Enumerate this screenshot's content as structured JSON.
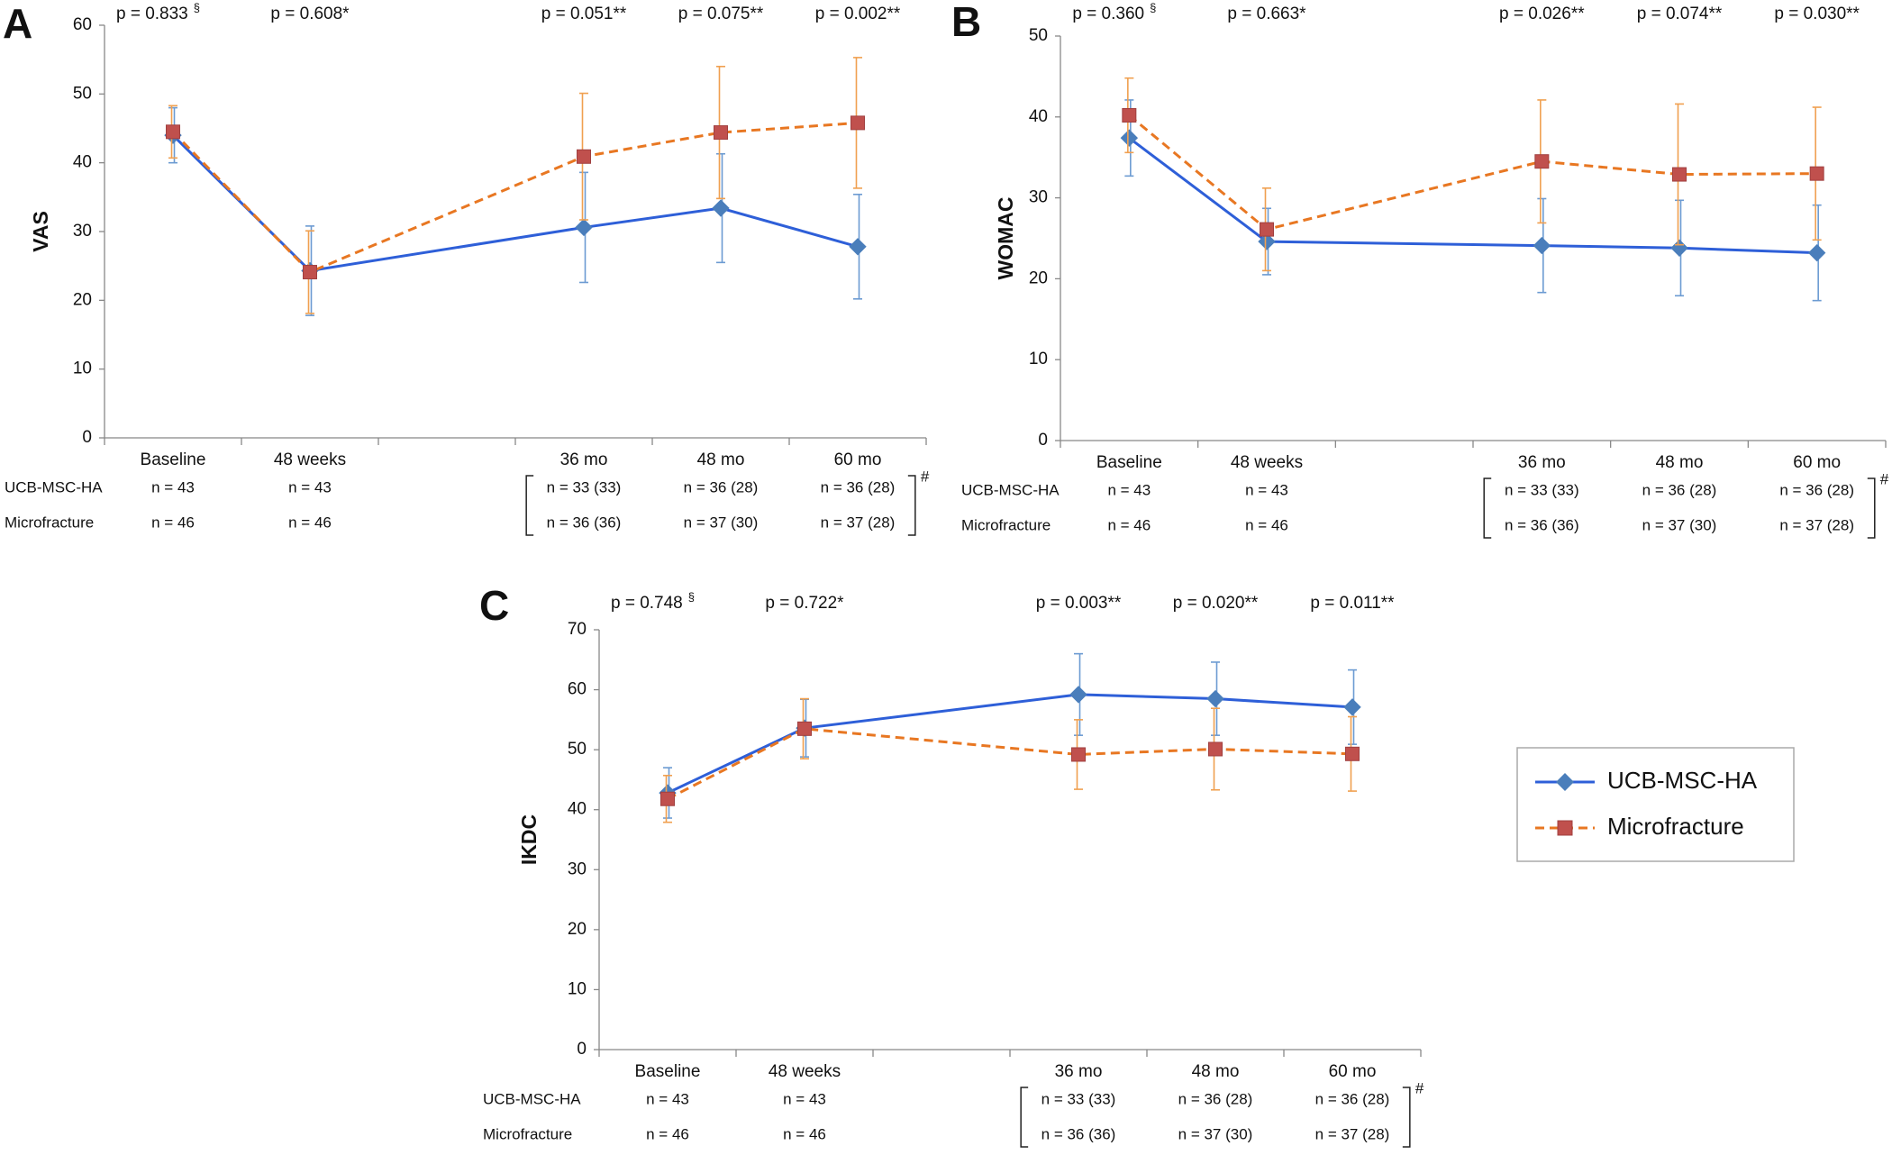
{
  "chart_data": [
    {
      "type": "line",
      "panel": "A",
      "ylabel": "VAS",
      "x": [
        0,
        1,
        3,
        4,
        5
      ],
      "xlim": [
        -0.5,
        5.5
      ],
      "xticks": [
        {
          "value": 0,
          "label": "Baseline"
        },
        {
          "value": 1,
          "label": "48 weeks"
        },
        {
          "value": 3,
          "label": "36 mo"
        },
        {
          "value": 4,
          "label": "48 mo"
        },
        {
          "value": 5,
          "label": "60 mo"
        }
      ],
      "ylim": [
        0,
        60
      ],
      "yticks": [
        0,
        10,
        20,
        30,
        40,
        50,
        60
      ],
      "series": [
        {
          "name": "UCB-MSC-HA",
          "color": "#2e5fd8",
          "marker_color": "#4a7ebb",
          "error_color": "#6c9bd2",
          "marker": "diamond",
          "dash": false,
          "values": [
            44,
            24.3,
            30.6,
            33.4,
            27.8
          ],
          "errors": [
            4,
            6.5,
            8,
            7.9,
            7.6
          ]
        },
        {
          "name": "Microfracture",
          "color": "#e87722",
          "marker_color": "#c0504d",
          "error_color": "#f0a050",
          "marker": "square",
          "dash": true,
          "values": [
            44.5,
            24.1,
            40.9,
            44.4,
            45.8
          ],
          "errors": [
            3.8,
            6,
            9.2,
            9.6,
            9.5
          ]
        }
      ],
      "p_values": [
        {
          "text": "p = 0.833",
          "sup": "§"
        },
        {
          "text": "p = 0.608*"
        },
        {
          "text": "p = 0.051**"
        },
        {
          "text": "p = 0.075**"
        },
        {
          "text": "p = 0.002**"
        }
      ],
      "n_table": {
        "rows": [
          [
            "n = 43",
            "n = 43",
            "n = 33 (33)",
            "n = 36 (28)",
            "n = 36 (28)"
          ],
          [
            "n = 46",
            "n = 46",
            "n = 36 (36)",
            "n = 37 (30)",
            "n = 37 (28)"
          ]
        ],
        "note": "#"
      }
    },
    {
      "type": "line",
      "panel": "B",
      "ylabel": "WOMAC",
      "x": [
        0,
        1,
        3,
        4,
        5
      ],
      "xlim": [
        -0.5,
        5.5
      ],
      "xticks": [
        {
          "value": 0,
          "label": "Baseline"
        },
        {
          "value": 1,
          "label": "48 weeks"
        },
        {
          "value": 3,
          "label": "36 mo"
        },
        {
          "value": 4,
          "label": "48 mo"
        },
        {
          "value": 5,
          "label": "60 mo"
        }
      ],
      "ylim": [
        0,
        50
      ],
      "yticks": [
        0,
        10,
        20,
        30,
        40,
        50
      ],
      "series": [
        {
          "name": "UCB-MSC-HA",
          "color": "#2e5fd8",
          "marker_color": "#4a7ebb",
          "error_color": "#6c9bd2",
          "marker": "diamond",
          "dash": false,
          "values": [
            37.4,
            24.6,
            24.1,
            23.8,
            23.2
          ],
          "errors": [
            4.7,
            4.1,
            5.8,
            5.9,
            5.9
          ]
        },
        {
          "name": "Microfracture",
          "color": "#e87722",
          "marker_color": "#c0504d",
          "error_color": "#f0a050",
          "marker": "square",
          "dash": true,
          "values": [
            40.2,
            26.1,
            34.5,
            32.9,
            33
          ],
          "errors": [
            4.6,
            5.1,
            7.6,
            8.7,
            8.2
          ]
        }
      ],
      "p_values": [
        {
          "text": "p = 0.360",
          "sup": "§"
        },
        {
          "text": "p = 0.663*"
        },
        {
          "text": "p = 0.026**"
        },
        {
          "text": "p = 0.074**"
        },
        {
          "text": "p = 0.030**"
        }
      ],
      "n_table": {
        "rows": [
          [
            "n = 43",
            "n = 43",
            "n = 33 (33)",
            "n = 36 (28)",
            "n = 36 (28)"
          ],
          [
            "n = 46",
            "n = 46",
            "n = 36 (36)",
            "n = 37 (30)",
            "n = 37 (28)"
          ]
        ],
        "note": "#"
      }
    },
    {
      "type": "line",
      "panel": "C",
      "ylabel": "IKDC",
      "x": [
        0,
        1,
        3,
        4,
        5
      ],
      "xlim": [
        -0.5,
        5.5
      ],
      "xticks": [
        {
          "value": 0,
          "label": "Baseline"
        },
        {
          "value": 1,
          "label": "48 weeks"
        },
        {
          "value": 3,
          "label": "36 mo"
        },
        {
          "value": 4,
          "label": "48 mo"
        },
        {
          "value": 5,
          "label": "60 mo"
        }
      ],
      "ylim": [
        0,
        70
      ],
      "yticks": [
        0,
        10,
        20,
        30,
        40,
        50,
        60,
        70
      ],
      "series": [
        {
          "name": "UCB-MSC-HA",
          "color": "#2e5fd8",
          "marker_color": "#4a7ebb",
          "error_color": "#6c9bd2",
          "marker": "diamond",
          "dash": false,
          "values": [
            42.8,
            53.6,
            59.2,
            58.5,
            57.1
          ],
          "errors": [
            4.2,
            4.8,
            6.8,
            6.1,
            6.2
          ]
        },
        {
          "name": "Microfracture",
          "color": "#e87722",
          "marker_color": "#c0504d",
          "error_color": "#f0a050",
          "marker": "square",
          "dash": true,
          "values": [
            41.8,
            53.5,
            49.2,
            50.1,
            49.3
          ],
          "errors": [
            3.9,
            5,
            5.8,
            6.8,
            6.2
          ]
        }
      ],
      "p_values": [
        {
          "text": "p = 0.748",
          "sup": "§"
        },
        {
          "text": "p = 0.722*"
        },
        {
          "text": "p = 0.003**"
        },
        {
          "text": "p = 0.020**"
        },
        {
          "text": "p = 0.011**"
        }
      ],
      "n_table": {
        "rows": [
          [
            "n = 43",
            "n = 43",
            "n = 33 (33)",
            "n = 36 (28)",
            "n = 36 (28)"
          ],
          [
            "n = 46",
            "n = 46",
            "n = 36 (36)",
            "n = 37 (30)",
            "n = 37 (28)"
          ]
        ],
        "note": "#"
      },
      "legend": "right"
    }
  ]
}
